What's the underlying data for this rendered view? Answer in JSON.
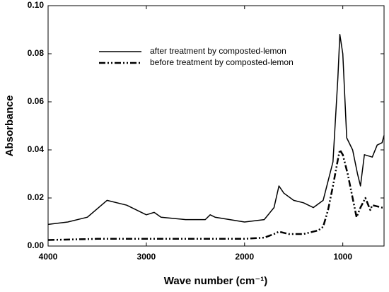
{
  "chart_data": {
    "type": "line",
    "xlabel": "Wave number (cm⁻¹)",
    "ylabel": "Absorbance",
    "xlim": [
      4000,
      580
    ],
    "xticks": [
      4000,
      3000,
      2000,
      1000
    ],
    "ylim": [
      0,
      0.1
    ],
    "yticks": [
      {
        "value": 0,
        "label": "0.00"
      },
      {
        "value": 0.02,
        "label": "0.02"
      },
      {
        "value": 0.04,
        "label": "0.04"
      },
      {
        "value": 0.06,
        "label": "0.06"
      },
      {
        "value": 0.08,
        "label": "0.08"
      },
      {
        "value": 0.1,
        "label": "0.10"
      }
    ],
    "legend": "top-center",
    "series": [
      {
        "name": "after treatment by composted-lemon",
        "color": "#000000",
        "dash": "solid",
        "x": [
          4000,
          3800,
          3600,
          3400,
          3200,
          3000,
          2920,
          2850,
          2600,
          2400,
          2350,
          2300,
          2000,
          1800,
          1700,
          1650,
          1600,
          1500,
          1400,
          1300,
          1200,
          1100,
          1050,
          1030,
          1000,
          960,
          900,
          850,
          820,
          780,
          700,
          650,
          600,
          580
        ],
        "values": [
          0.009,
          0.01,
          0.012,
          0.019,
          0.017,
          0.013,
          0.014,
          0.012,
          0.011,
          0.011,
          0.013,
          0.012,
          0.01,
          0.011,
          0.016,
          0.025,
          0.022,
          0.019,
          0.018,
          0.016,
          0.019,
          0.035,
          0.07,
          0.088,
          0.08,
          0.045,
          0.04,
          0.03,
          0.025,
          0.038,
          0.037,
          0.042,
          0.043,
          0.046
        ]
      },
      {
        "name": "before treatment by composted-lemon",
        "color": "#000000",
        "dash": "dashdot",
        "x": [
          4000,
          3500,
          3000,
          2500,
          2000,
          1800,
          1700,
          1650,
          1550,
          1400,
          1250,
          1200,
          1150,
          1100,
          1050,
          1030,
          1000,
          950,
          900,
          860,
          820,
          770,
          720,
          700,
          600,
          580
        ],
        "values": [
          0.0025,
          0.003,
          0.003,
          0.003,
          0.003,
          0.0035,
          0.005,
          0.006,
          0.005,
          0.005,
          0.0065,
          0.008,
          0.015,
          0.025,
          0.036,
          0.04,
          0.038,
          0.03,
          0.02,
          0.012,
          0.016,
          0.02,
          0.015,
          0.017,
          0.016,
          0.016
        ]
      }
    ]
  }
}
